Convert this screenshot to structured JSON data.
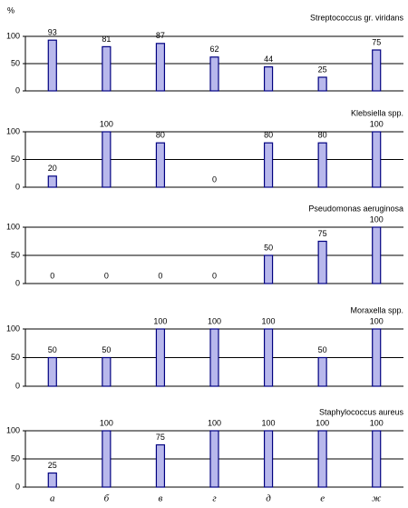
{
  "chart_data": [
    {
      "type": "bar",
      "title": "Streptococcus gr. viridans",
      "y_label": "%",
      "categories": [
        null,
        null,
        null,
        null,
        null,
        null,
        null
      ],
      "values": [
        93,
        81,
        87,
        62,
        44,
        25,
        75
      ],
      "color": "#b8b8ec",
      "ylim": [
        0,
        100
      ],
      "yticks": [
        0,
        50,
        100
      ],
      "grid": true
    },
    {
      "type": "bar",
      "title": "Klebsiella spp.",
      "categories": [
        null,
        null,
        null,
        null,
        null,
        null,
        null
      ],
      "values": [
        20,
        100,
        80,
        0,
        80,
        80,
        100
      ],
      "color": "#b8b8ec",
      "ylim": [
        0,
        100
      ],
      "yticks": [
        0,
        50,
        100
      ],
      "grid": true
    },
    {
      "type": "bar",
      "title": "Pseudomonas aeruginosa",
      "categories": [
        null,
        null,
        null,
        null,
        null,
        null,
        null
      ],
      "values": [
        0,
        0,
        0,
        0,
        50,
        75,
        100
      ],
      "color": "#b8b8ec",
      "ylim": [
        0,
        100
      ],
      "yticks": [
        0,
        50,
        100
      ],
      "grid": true
    },
    {
      "type": "bar",
      "title": "Moraxella spp.",
      "categories": [
        null,
        null,
        null,
        null,
        null,
        null,
        null
      ],
      "values": [
        50,
        50,
        100,
        100,
        100,
        50,
        100
      ],
      "color": "#b8b8ec",
      "ylim": [
        0,
        100
      ],
      "yticks": [
        0,
        50,
        100
      ],
      "grid": true
    },
    {
      "type": "bar",
      "title": "Staphylococcus aureus",
      "categories": [
        "а",
        "б",
        "в",
        "г",
        "д",
        "е",
        "ж"
      ],
      "values": [
        25,
        100,
        75,
        100,
        100,
        100,
        100
      ],
      "color": "#b8b8ec",
      "ylim": [
        0,
        100
      ],
      "yticks": [
        0,
        50,
        100
      ],
      "grid": true
    }
  ]
}
